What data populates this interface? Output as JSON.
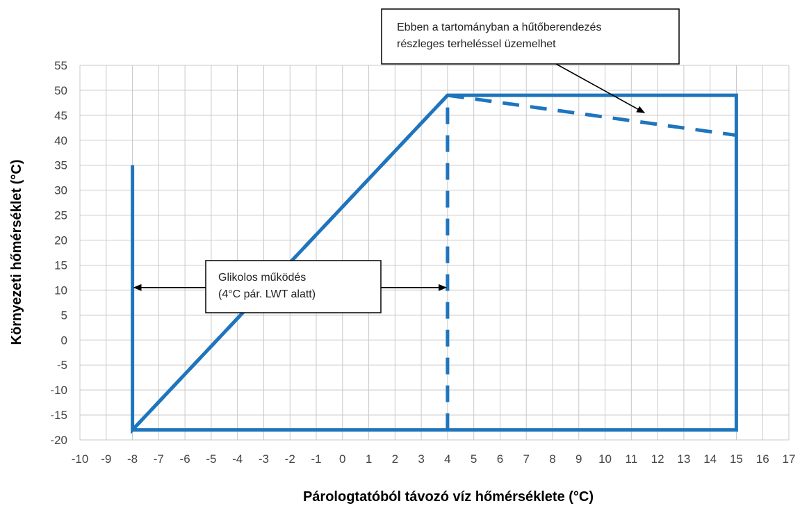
{
  "chart_data": {
    "type": "line",
    "title": "",
    "xlabel": "Párologtatóból távozó víz hőmérséklete (°C)",
    "ylabel": "Környezeti hőmérséklet (°C)",
    "xlim": [
      -10,
      17
    ],
    "ylim": [
      -20,
      55
    ],
    "x_ticks": [
      -10,
      -9,
      -8,
      -7,
      -6,
      -5,
      -4,
      -3,
      -2,
      -1,
      0,
      1,
      2,
      3,
      4,
      5,
      6,
      7,
      8,
      9,
      10,
      11,
      12,
      13,
      14,
      15,
      16,
      17
    ],
    "y_ticks": [
      55,
      50,
      45,
      40,
      35,
      30,
      25,
      20,
      15,
      10,
      5,
      0,
      -5,
      -10,
      -15,
      -20
    ],
    "grid": true,
    "line_color": "#1f75bd",
    "series": [
      {
        "style": "solid",
        "x": [
          -8,
          -8,
          4,
          15,
          15,
          -8
        ],
        "y": [
          35,
          -18,
          49,
          49,
          -18,
          -18
        ]
      },
      {
        "style": "dashed",
        "x": [
          -8,
          4
        ],
        "y": [
          -18,
          49
        ]
      },
      {
        "style": "dashed",
        "x": [
          4,
          4
        ],
        "y": [
          -18,
          49
        ]
      },
      {
        "style": "dashed",
        "x": [
          4,
          15
        ],
        "y": [
          49,
          41
        ]
      }
    ],
    "annotations": [
      {
        "lines": [
          "Ebben a tartományban a hűtőberendezés",
          "részleges terheléssel üzemelhet"
        ],
        "arrow_to": [
          11.5,
          45.5
        ]
      },
      {
        "lines": [
          "Glikolos működés",
          "(4°C pár. LWT alatt)"
        ],
        "double_arrow_from": [
          -8,
          10.5
        ],
        "double_arrow_to": [
          4,
          10.5
        ]
      }
    ]
  }
}
